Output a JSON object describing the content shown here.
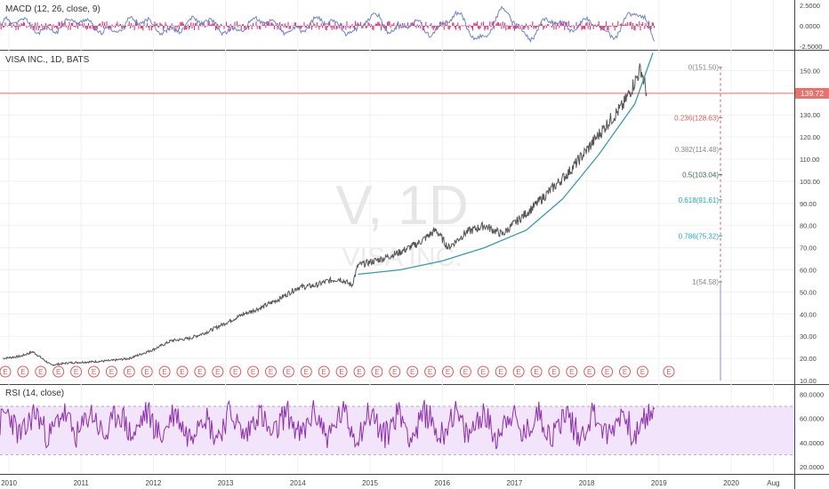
{
  "macd": {
    "title": "MACD (12, 26, close, 9)",
    "ticks": [
      {
        "label": "2.5000",
        "v": 2.5
      },
      {
        "label": "0.0000",
        "v": 0
      },
      {
        "label": "-2.5000",
        "v": -2.5
      }
    ]
  },
  "main": {
    "title": "VISA INC., 1D, BATS",
    "watermark_big": "V, 1D",
    "watermark_sub": "VISA INC.",
    "price_badge": "139.72",
    "price_line_value": 139.72,
    "earnings_marker": "E"
  },
  "rsi": {
    "title": "RSI (14, close)",
    "ticks": [
      {
        "label": "80.0000",
        "v": 80
      },
      {
        "label": "60.0000",
        "v": 60
      },
      {
        "label": "40.0000",
        "v": 40
      },
      {
        "label": "20.0000",
        "v": 20
      }
    ],
    "band": [
      30,
      70
    ]
  },
  "colors": {
    "price": "#555555",
    "curve": "#3a9bab",
    "price_line": "#e8726e",
    "macd_line": "#6d86c8",
    "macd_hist": "#e0236b",
    "rsi_line": "#8e2fb0",
    "rsi_band": "#f1e4fb",
    "fib_0": "#888888",
    "fib_0236": "#e05a5a",
    "fib_0382": "#888888",
    "fib_05": "#3b6b4d",
    "fib_0618": "#22aaaa",
    "fib_0786": "#2aa7c4",
    "fib_1": "#888888"
  },
  "chart_data": {
    "type": "line",
    "title": "VISA INC., 1D, BATS",
    "xlabel": "",
    "ylabel": "",
    "x_ticks": [
      "2010",
      "2011",
      "2012",
      "2013",
      "2014",
      "2015",
      "2016",
      "2017",
      "2018",
      "2019",
      "2020",
      "Aug"
    ],
    "y_ticks": [
      "10.00",
      "20.00",
      "30.00",
      "40.00",
      "50.00",
      "60.00",
      "70.00",
      "80.00",
      "90.00",
      "100.00",
      "110.00",
      "120.00",
      "130.00",
      "140.00",
      "150.00"
    ],
    "ylim": [
      10,
      155
    ],
    "series": [
      {
        "x": [
          "2009-12",
          "2010-03",
          "2010-05",
          "2010-08",
          "2010-11",
          "2011-03",
          "2011-06",
          "2011-09",
          "2012-01",
          "2012-04",
          "2012-07",
          "2012-10",
          "2013-01",
          "2013-04",
          "2013-07",
          "2013-10",
          "2014-01",
          "2014-04",
          "2014-06",
          "2014-08",
          "2014-10",
          "2014-11",
          "2015-03",
          "2015-06",
          "2015-09",
          "2015-12",
          "2016-02",
          "2016-05",
          "2016-08",
          "2016-11",
          "2017-01",
          "2017-04",
          "2017-07",
          "2017-10",
          "2018-01",
          "2018-03",
          "2018-05",
          "2018-07",
          "2018-09",
          "2018-10",
          "2018-11"
        ],
        "values": [
          20,
          21,
          23,
          17,
          18,
          18.5,
          19,
          20,
          24,
          28,
          29,
          32,
          36,
          40,
          43,
          47,
          52,
          53,
          55,
          56,
          53,
          62,
          65,
          68,
          72,
          78,
          70,
          77,
          80,
          76,
          81,
          88,
          96,
          104,
          114,
          121,
          128,
          134,
          145,
          151,
          139.72
        ]
      }
    ],
    "curve": {
      "x": [
        "2014-11",
        "2015-06",
        "2016-01",
        "2016-08",
        "2017-03",
        "2017-09",
        "2018-03",
        "2018-09",
        "2018-12"
      ],
      "values": [
        58,
        60,
        64,
        70,
        78,
        92,
        112,
        135,
        158
      ]
    },
    "fib_levels": [
      {
        "label": "0(151.50)",
        "value": 151.5
      },
      {
        "label": "0.236(128.63)",
        "value": 128.63
      },
      {
        "label": "0.382(114.48)",
        "value": 114.48
      },
      {
        "label": "0.5(103.04)",
        "value": 103.04
      },
      {
        "label": "0.618(91.61)",
        "value": 91.61
      },
      {
        "label": "0.786(75.32)",
        "value": 75.32
      },
      {
        "label": "1(54.58)",
        "value": 54.58
      }
    ],
    "earnings_count": 37
  }
}
